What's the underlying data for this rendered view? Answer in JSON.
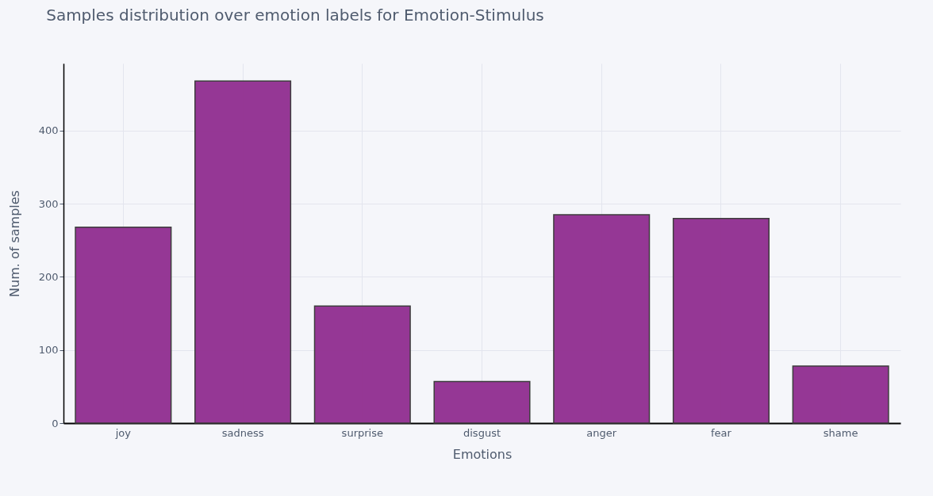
{
  "chart_data": {
    "type": "bar",
    "title": "Samples distribution over emotion labels for Emotion-Stimulus",
    "xlabel": "Emotions",
    "ylabel": "Num. of samples",
    "categories": [
      "joy",
      "sadness",
      "surprise",
      "disgust",
      "anger",
      "fear",
      "shame"
    ],
    "values": [
      268,
      468,
      160,
      57,
      285,
      280,
      78
    ],
    "color": "#943493",
    "ylim": [
      0,
      492
    ],
    "yticks": [
      0,
      100,
      200,
      300,
      400
    ],
    "grid": true
  }
}
